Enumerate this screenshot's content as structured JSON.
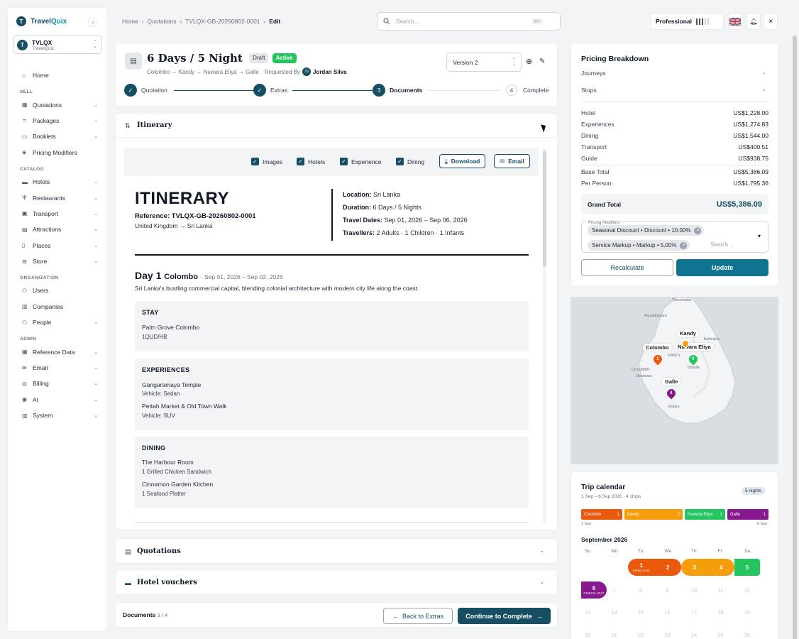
{
  "app": {
    "logo_letter": "T",
    "logo_a": "Travel",
    "logo_b": "Quix",
    "collapse_icon": "‹"
  },
  "org": {
    "name": "TVLQX",
    "sub": "TravelQuix"
  },
  "nav": {
    "home": "Home",
    "sec_sell": "SELL",
    "quotations": "Quotations",
    "packages": "Packages",
    "booklets": "Booklets",
    "pricing_modifiers": "Pricing Modifiers",
    "sec_catalog": "CATALOG",
    "hotels": "Hotels",
    "restaurants": "Restaurants",
    "transport": "Transport",
    "attractions": "Attractions",
    "places": "Places",
    "store": "Store",
    "sec_org": "ORGANIZATION",
    "users": "Users",
    "companies": "Companies",
    "people": "People",
    "sec_admin": "ADMIN",
    "reference_data": "Reference Data",
    "email": "Email",
    "billing": "Billing",
    "ai": "AI",
    "system": "System"
  },
  "breadcrumb": {
    "home": "Home",
    "quotations": "Quotations",
    "ref": "TVLQX-GB-20260802-0001",
    "current": "Edit"
  },
  "search": {
    "placeholder": "Search...",
    "shortcut": "⌘K"
  },
  "plan": {
    "label": "Professional",
    "level": 3,
    "total": 5
  },
  "quote": {
    "title": "6 Days / 5 Night",
    "badge_draft": "Draft",
    "badge_active": "Active",
    "route": "Colombo → Kandy → Nuwara Eliya → Galle",
    "requested_by": "· Requested By",
    "requester_initials": "JS",
    "requester": "Jordan Silva",
    "version": "Version 2"
  },
  "steps": [
    {
      "num": "✓",
      "label": "Quotation"
    },
    {
      "num": "✓",
      "label": "Extras"
    },
    {
      "num": "3",
      "label": "Documents"
    },
    {
      "num": "4",
      "label": "Complete"
    }
  ],
  "itinerary": {
    "section_title": "Itinerary",
    "toggles": {
      "images": "Images",
      "hotels": "Hotels",
      "experience": "Experience",
      "dining": "Dining"
    },
    "download": "Download",
    "email": "Email",
    "heading": "ITINERARY",
    "reference": "Reference: TVLQX-GB-20260802-0001",
    "ref_route": "United Kingdom → Sri Lanka",
    "meta": {
      "location_k": "Location:",
      "location_v": "Sri Lanka",
      "duration_k": "Duration:",
      "duration_v": "6 Days / 5 Nights",
      "dates_k": "Travel Dates:",
      "dates_v": "Sep 01, 2026 – Sep 06, 2026",
      "travellers_k": "Travellers:",
      "travellers_v": "2 Adults · 1 Children · 1 Infants"
    },
    "day1": {
      "label": "Day 1",
      "city": "Colombo",
      "dates": "· Sep 01, 2026 – Sep 02, 2026",
      "desc": "Sri Lanka's bustling commercial capital, blending colonial architecture with modern city life along the coast.",
      "stay_title": "STAY",
      "stay_hotel": "Palm Grove Colombo",
      "stay_basis": "1QUD/HB",
      "exp_title": "EXPERIENCES",
      "exp1": "Gangaramaya Temple",
      "exp1_v": "Vehicle: Sedan",
      "exp2": "Pettah Market & Old Town Walk",
      "exp2_v": "Vehicle: SUV",
      "dining_title": "DINING",
      "din1": "The Harbour Room",
      "din1_i": "1 Grilled Chicken Sandwich",
      "din2": "Cinnamon Garden Kitchen",
      "din2_i": "1 Seafood Platter"
    }
  },
  "sections": {
    "quotations": "Quotations",
    "hotel_vouchers": "Hotel vouchers"
  },
  "footer": {
    "docs": "Documents",
    "docs_count": "3 / 4",
    "back": "Back to Extras",
    "next": "Continue to Complete"
  },
  "pricing": {
    "title": "Pricing Breakdown",
    "journeys": "Journeys",
    "stops": "Stops",
    "rows": [
      {
        "k": "Hotel",
        "v": "US$1,228.00"
      },
      {
        "k": "Experiences",
        "v": "US$1,274.83"
      },
      {
        "k": "Dining",
        "v": "US$1,544.00"
      },
      {
        "k": "Transport",
        "v": "US$400.51"
      },
      {
        "k": "Guide",
        "v": "US$938.75"
      }
    ],
    "base_k": "Base Total",
    "base_v": "US$5,386.09",
    "pp_k": "Per Person",
    "pp_v": "US$1,795.36",
    "grand_k": "Grand Total",
    "grand_v": "US$5,386.09",
    "mod_label": "Pricing Modifiers",
    "mod1": "Seasonal Discount • Discount • 10.00%",
    "mod2": "Service Markup • Markup • 5.00%",
    "mod_search": "Search ...",
    "recalc": "Recalculate",
    "update": "Update"
  },
  "map": {
    "labels": {
      "colombo": "Colombo",
      "kandy": "Kandy",
      "nuwara": "Nuwara Eliya",
      "galle": "Galle"
    },
    "tiny": {
      "anuradhapura": "Anuradhapura",
      "colombo": "COLOMBO",
      "kandy": "KANDY",
      "batticaloa": "Batticaloa",
      "badulla": "Badulla",
      "matara": "Matara",
      "moratuwa": "Moratuwa",
      "trincomalee": "Trincomalee"
    },
    "pins": [
      "1",
      "2",
      "3",
      "4"
    ]
  },
  "calendar": {
    "title": "Trip calendar",
    "sub": "1 Sep – 6 Sep 2026 · 4 stops",
    "nights": "5 nights",
    "segments": [
      {
        "name": "Colombo",
        "n": "1"
      },
      {
        "name": "Kandy",
        "n": "2"
      },
      {
        "name": "Nuwara Eliya",
        "n": "1"
      },
      {
        "name": "Galle",
        "n": "1"
      }
    ],
    "start": "1 Sep",
    "end": "6 Sep",
    "month": "September 2026",
    "dow": [
      "Su",
      "Mo",
      "Tu",
      "We",
      "Th",
      "Fr",
      "Sa"
    ],
    "check_in": "CHECK-IN",
    "check_out": "CHECK-OUT",
    "colors": {
      "colombo": "#ea580c",
      "kandy": "#f59e0b",
      "nuwara": "#22c55e",
      "galle": "#86198f"
    }
  }
}
